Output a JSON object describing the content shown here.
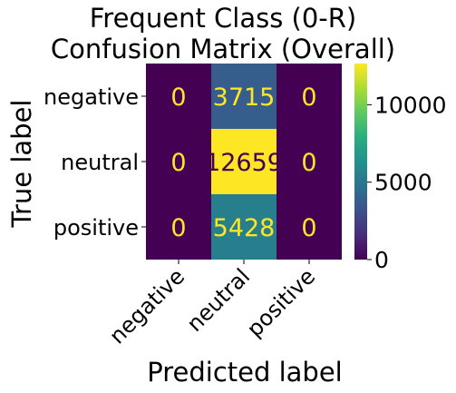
{
  "chart_data": {
    "type": "heatmap",
    "title_lines": [
      "Frequent Class (0-R)",
      "Confusion Matrix (Overall)"
    ],
    "xlabel": "Predicted label",
    "ylabel": "True label",
    "x_categories": [
      "negative",
      "neutral",
      "positive"
    ],
    "y_categories": [
      "negative",
      "neutral",
      "positive"
    ],
    "values": [
      [
        0,
        3715,
        0
      ],
      [
        0,
        12659,
        0
      ],
      [
        0,
        5428,
        0
      ]
    ],
    "cell_labels": [
      [
        "0",
        "3715",
        "0"
      ],
      [
        "0",
        "12659",
        "0"
      ],
      [
        "0",
        "5428",
        "0"
      ]
    ],
    "colormap": "viridis",
    "color_range": [
      0,
      12659
    ],
    "colorbar": {
      "ticks": [
        0,
        5000,
        10000
      ],
      "tick_labels": [
        "0",
        "5000",
        "10000"
      ]
    },
    "colors": {
      "text_on_dark": "#fde725",
      "text_on_light": "#440154"
    }
  }
}
